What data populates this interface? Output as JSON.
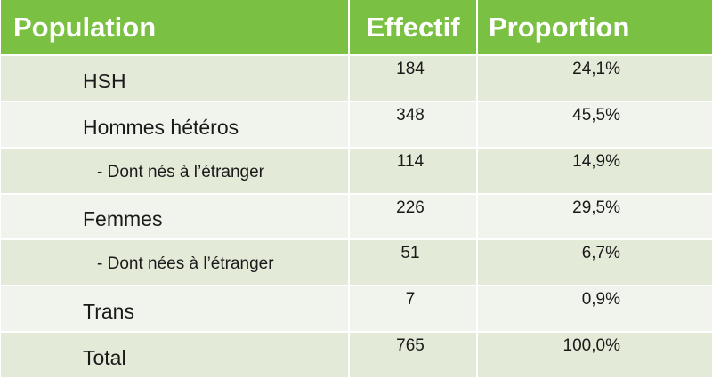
{
  "header": {
    "population": "Population",
    "effectif": "Effectif",
    "proportion": "Proportion"
  },
  "colors": {
    "header_bg": "#7ac143",
    "row_dark": "#e3ead8",
    "row_light": "#f1f4ec"
  },
  "rows": [
    {
      "label": "HSH",
      "effectif": "184",
      "proportion": "24,1%"
    },
    {
      "label": "Hommes hétéros",
      "effectif": "348",
      "proportion": "45,5%"
    },
    {
      "label": "- Dont nés à l’étranger",
      "effectif": "114",
      "proportion": "14,9%"
    },
    {
      "label": "Femmes",
      "effectif": "226",
      "proportion": "29,5%"
    },
    {
      "label": "- Dont nées à l’étranger",
      "effectif": "51",
      "proportion": "6,7%"
    },
    {
      "label": "Trans",
      "effectif": "7",
      "proportion": "0,9%"
    },
    {
      "label": "Total",
      "effectif": "765",
      "proportion": "100,0%"
    }
  ]
}
